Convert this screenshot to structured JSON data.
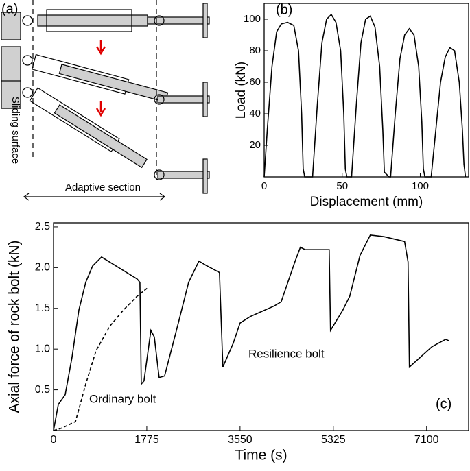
{
  "diagram": {
    "label": "(a)",
    "sliding_surface": "Sliding surface",
    "adaptive_section": "Adaptive section"
  },
  "chart_data": [
    {
      "type": "line",
      "label": "(b)",
      "xlabel": "Displacement (mm)",
      "ylabel": "Load (kN)",
      "color": "#000000",
      "x": [
        0,
        2,
        5,
        8,
        11,
        15,
        19,
        22,
        24,
        25,
        26,
        31,
        34,
        37,
        40,
        43,
        46,
        49,
        51,
        52,
        53,
        56,
        59,
        62,
        65,
        68,
        71,
        74,
        76,
        77,
        80,
        81,
        84,
        87,
        90,
        93,
        96,
        99,
        101,
        102,
        103,
        107,
        110,
        113,
        116,
        119,
        122,
        125,
        127,
        128,
        129
      ],
      "values": [
        0,
        30,
        70,
        92,
        97,
        98,
        96,
        80,
        40,
        5,
        0,
        0,
        45,
        85,
        100,
        103,
        98,
        80,
        40,
        5,
        0,
        0,
        45,
        85,
        100,
        102,
        95,
        70,
        30,
        3,
        0,
        0,
        40,
        75,
        90,
        94,
        90,
        70,
        35,
        5,
        0,
        0,
        30,
        60,
        76,
        82,
        80,
        60,
        30,
        8,
        0
      ],
      "xlim": [
        0,
        131
      ],
      "ylim": [
        0,
        110
      ],
      "xticks": [
        0,
        50,
        100
      ],
      "yticks": [
        20,
        40,
        60,
        80,
        100
      ]
    },
    {
      "type": "line",
      "label": "(c)",
      "xlabel": "Time (s)",
      "ylabel": "Axial force of rock bolt (kN)",
      "series": [
        {
          "name": "Resilience bolt",
          "color": "#000000",
          "dash": false,
          "x": [
            0,
            91,
            222,
            352,
            483,
            613,
            744,
            914,
            1592,
            1644,
            1670,
            1722,
            1853,
            1918,
            2010,
            2114,
            2375,
            2571,
            2767,
            2897,
            3158,
            3223,
            3419,
            3550,
            3745,
            4202,
            4332,
            4593,
            4698,
            4789,
            5246,
            5272,
            5507,
            5638,
            5833,
            6029,
            6290,
            6681,
            6747,
            6773,
            7204,
            7465,
            7530
          ],
          "values": [
            0,
            0.32,
            0.44,
            0.9,
            1.48,
            1.82,
            2.02,
            2.13,
            1.86,
            1.82,
            0.57,
            0.61,
            1.23,
            1.15,
            0.65,
            0.67,
            1.32,
            1.82,
            2.08,
            2.03,
            1.94,
            0.78,
            1.07,
            1.32,
            1.4,
            1.53,
            1.58,
            2.07,
            2.25,
            2.22,
            2.22,
            1.23,
            1.48,
            1.65,
            2.15,
            2.4,
            2.38,
            2.32,
            2.07,
            0.78,
            1.03,
            1.12,
            1.1
          ]
        },
        {
          "name": "Ordinary bolt",
          "color": "#000000",
          "dash": true,
          "x": [
            0,
            157,
            418,
            613,
            809,
            1070,
            1331,
            1592,
            1788
          ],
          "values": [
            0,
            0.03,
            0.11,
            0.57,
            0.98,
            1.28,
            1.48,
            1.65,
            1.75
          ]
        }
      ],
      "xlim": [
        0,
        7900
      ],
      "ylim": [
        0,
        2.55
      ],
      "xticks": [
        0,
        1775,
        3550,
        5325,
        7100
      ],
      "yticks": [
        0.5,
        {
          "value": 1,
          "label": "1.0"
        },
        1.5,
        {
          "value": 2,
          "label": "2.0"
        },
        2.5
      ]
    }
  ]
}
